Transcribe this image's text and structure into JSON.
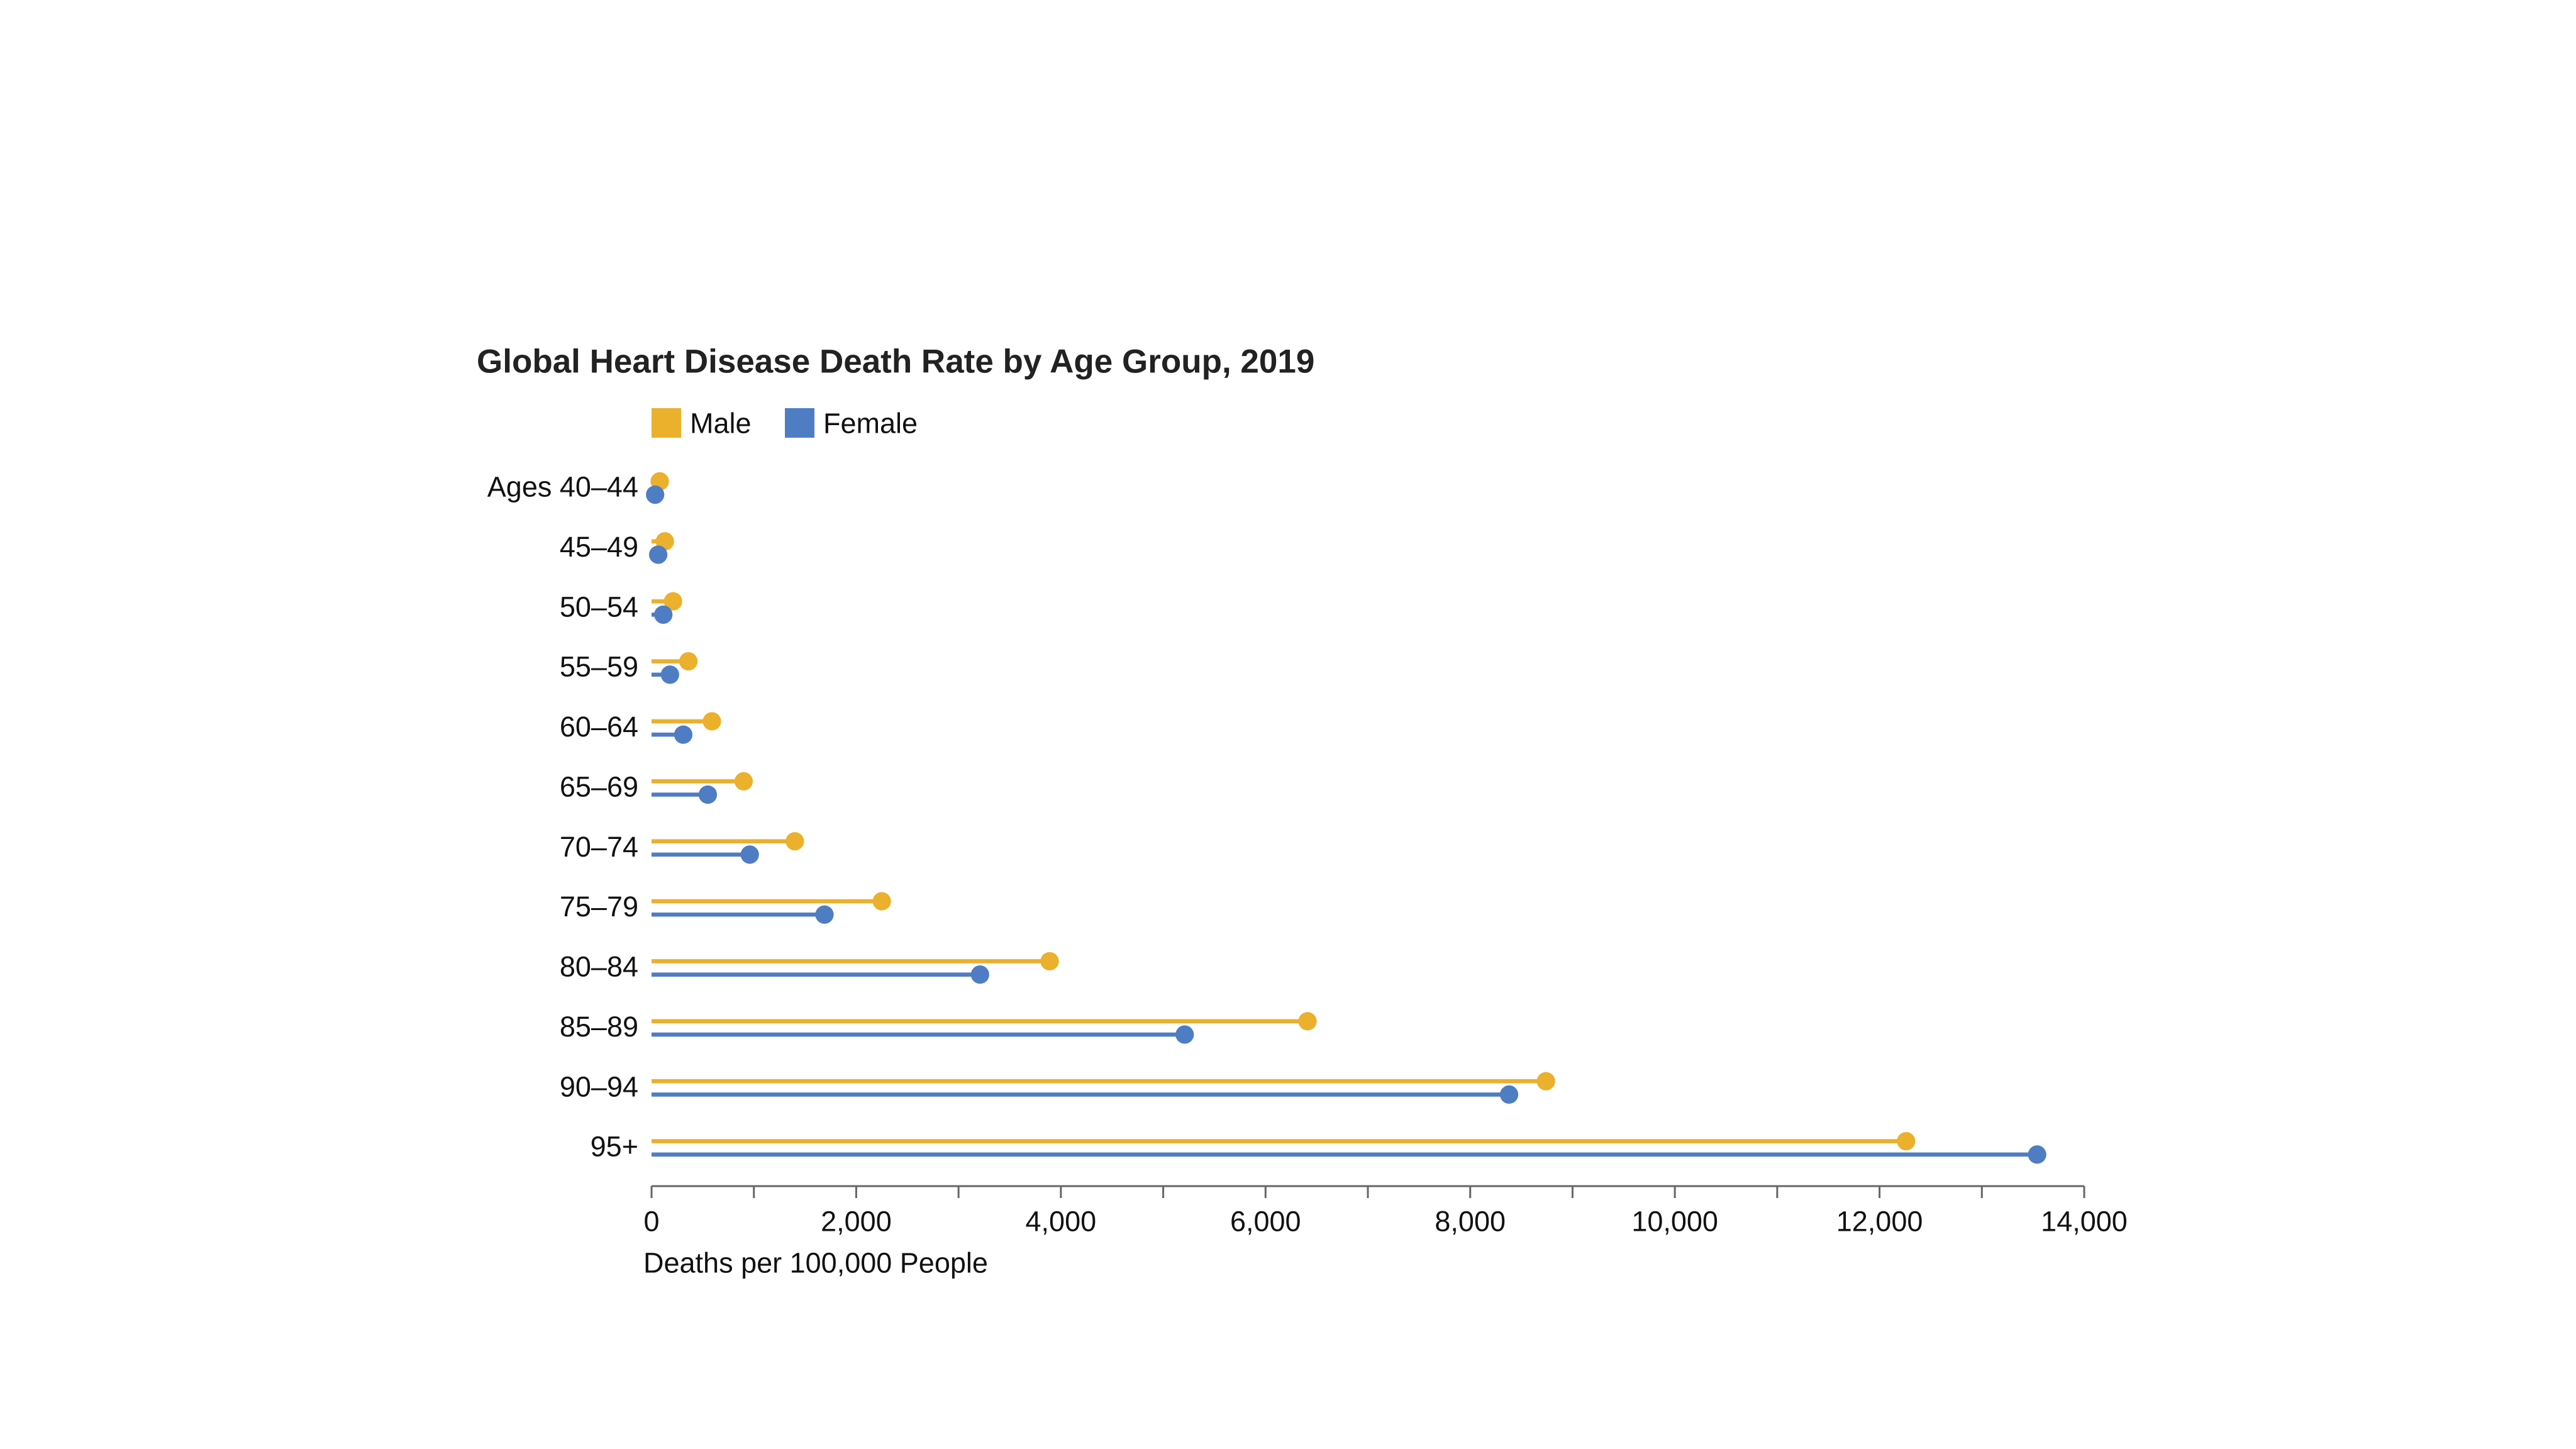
{
  "chart_data": {
    "type": "bar",
    "orientation": "horizontal",
    "style": "lollipop",
    "title": "Global Heart Disease Death Rate by Age Group, 2019",
    "xlabel": "Deaths per 100,000 People",
    "ylabel": "",
    "categories": [
      "Ages 40–44",
      "45–49",
      "50–54",
      "55–59",
      "60–64",
      "65–69",
      "70–74",
      "75–79",
      "80–84",
      "85–89",
      "90–94",
      "95+"
    ],
    "series": [
      {
        "name": "Male",
        "color": "#EBB02C",
        "values": [
          80,
          130,
          210,
          360,
          590,
          900,
          1400,
          2250,
          3890,
          6410,
          8740,
          12260
        ]
      },
      {
        "name": "Female",
        "color": "#4F7DC3",
        "values": [
          35,
          65,
          115,
          180,
          310,
          550,
          960,
          1690,
          3210,
          5210,
          8380,
          13540
        ]
      }
    ],
    "xlim": [
      0,
      14000
    ],
    "x_ticks": [
      0,
      2000,
      4000,
      6000,
      8000,
      10000,
      12000,
      14000
    ],
    "x_tick_labels": [
      "0",
      "2,000",
      "4,000",
      "6,000",
      "8,000",
      "10,000",
      "12,000",
      "14,000"
    ],
    "legend_position": "top-left",
    "grid": false,
    "axis_color": "#666666"
  }
}
